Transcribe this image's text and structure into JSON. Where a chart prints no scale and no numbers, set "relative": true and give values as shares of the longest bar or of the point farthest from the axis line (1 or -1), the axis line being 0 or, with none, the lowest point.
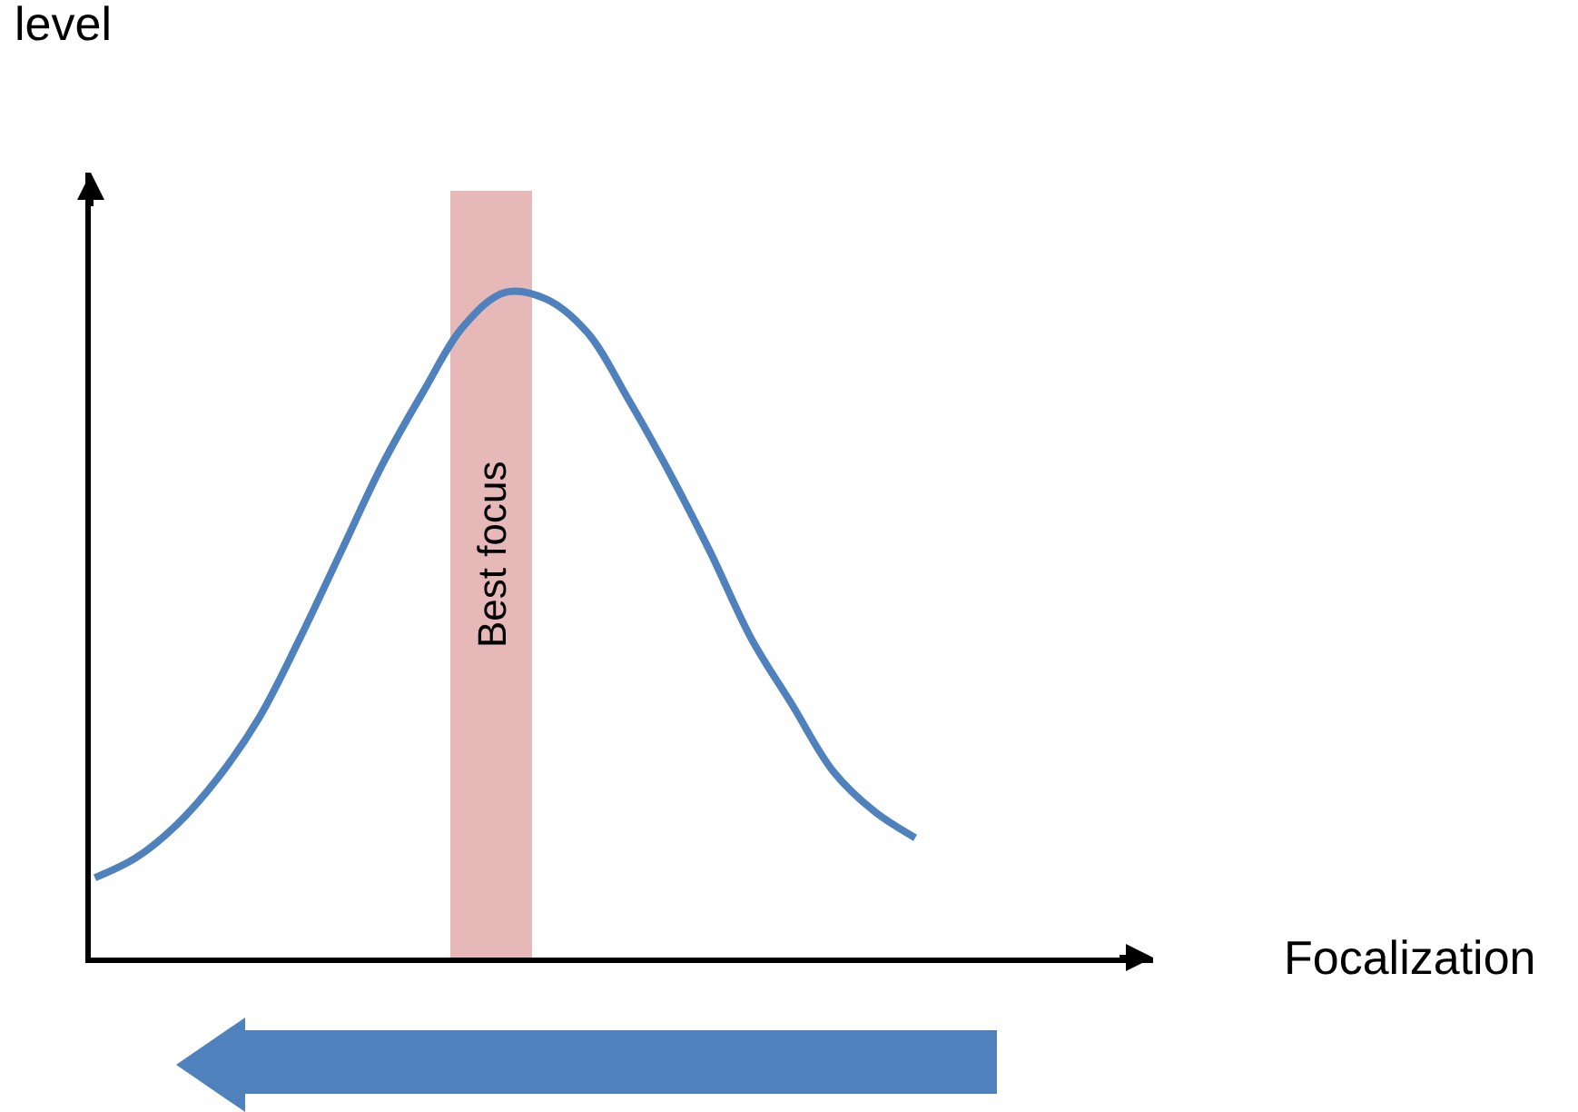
{
  "chart_data": {
    "type": "line",
    "relative": true,
    "annotations": [
      "level",
      "Focalization",
      "Best focus"
    ],
    "categories": [
      null,
      null,
      null,
      null,
      null,
      null,
      null,
      null,
      null,
      null,
      null,
      null,
      null,
      null,
      null,
      null,
      null,
      null,
      null,
      null,
      null
    ],
    "series": [
      {
        "color": "#4f81bd",
        "values": [
          0.12,
          0.15,
          0.2,
          0.27,
          0.36,
          0.48,
          0.61,
          0.74,
          0.85,
          0.95,
          1.0,
          0.99,
          0.94,
          0.84,
          0.73,
          0.61,
          0.48,
          0.38,
          0.28,
          0.22,
          0.18
        ]
      }
    ],
    "grid": false,
    "marker": "none",
    "line_style": "solid",
    "tick_labels": false
  }
}
